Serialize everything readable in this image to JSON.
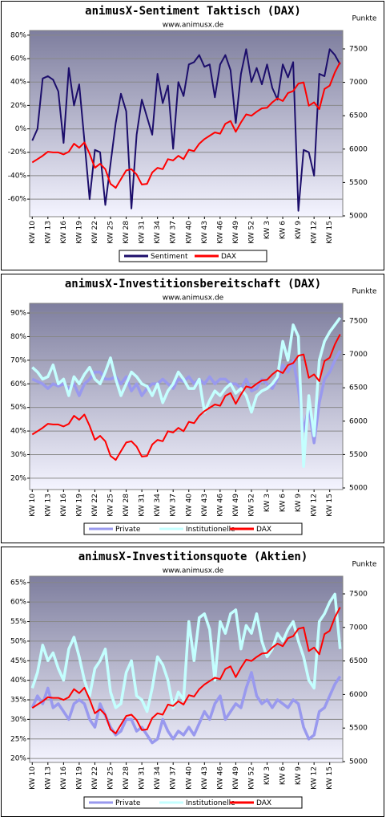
{
  "chart_data": [
    {
      "type": "line",
      "title": "animusX-Sentiment Taktisch (DAX)",
      "subtitle": "www.animusx.de",
      "y2_label": "Punkte",
      "categories": [
        "KW 10",
        null,
        null,
        "KW 13",
        null,
        null,
        "KW 16",
        null,
        null,
        "KW 19",
        null,
        null,
        "KW 22",
        null,
        null,
        "KW 25",
        null,
        null,
        "KW 28",
        null,
        null,
        "KW 31",
        null,
        null,
        "KW 34",
        null,
        null,
        "KW 37",
        null,
        null,
        "KW 40",
        null,
        null,
        "KW 43",
        null,
        null,
        "KW 46",
        null,
        null,
        "KW 49",
        null,
        null,
        "KW 52",
        null,
        null,
        "KW 3",
        null,
        null,
        "KW 6",
        null,
        null,
        "KW 9",
        null,
        null,
        "KW 12",
        null,
        null,
        "KW 15",
        null,
        null
      ],
      "series": [
        {
          "name": "Sentiment",
          "color": "#1c0e6b",
          "values": [
            -10,
            0,
            43,
            45,
            42,
            32,
            -12,
            52,
            20,
            38,
            -10,
            -60,
            -18,
            -20,
            -65,
            -30,
            5,
            30,
            15,
            -68,
            -5,
            25,
            10,
            -5,
            47,
            22,
            37,
            -17,
            40,
            28,
            55,
            57,
            63,
            53,
            55,
            27,
            55,
            63,
            50,
            5,
            47,
            68,
            40,
            52,
            38,
            55,
            35,
            25,
            55,
            44,
            57,
            -70,
            -18,
            -20,
            -40,
            47,
            45,
            68,
            63,
            55
          ]
        },
        {
          "name": "DAX",
          "color": "#ff0000",
          "axis": "y2",
          "values": [
            5800,
            5850,
            5900,
            5960,
            5950,
            5950,
            5920,
            5960,
            6080,
            6020,
            6100,
            5930,
            5720,
            5780,
            5700,
            5480,
            5420,
            5550,
            5680,
            5700,
            5620,
            5470,
            5480,
            5650,
            5720,
            5700,
            5850,
            5830,
            5900,
            5850,
            5990,
            5970,
            6080,
            6150,
            6200,
            6250,
            6230,
            6380,
            6420,
            6260,
            6400,
            6520,
            6500,
            6560,
            6610,
            6620,
            6700,
            6760,
            6720,
            6840,
            6870,
            6980,
            7000,
            6650,
            6700,
            6600,
            6900,
            6950,
            7150,
            7300
          ]
        }
      ],
      "ylim": [
        -75,
        84
      ],
      "yticks": [
        {
          "value": -60,
          "label": "-60%"
        },
        {
          "value": -40,
          "label": "-40%"
        },
        {
          "value": -20,
          "label": "-20%"
        },
        {
          "value": 0,
          "label": "0%"
        },
        {
          "value": 20,
          "label": "20%"
        },
        {
          "value": 40,
          "label": "40%"
        },
        {
          "value": 60,
          "label": "60%"
        },
        {
          "value": 80,
          "label": "80%"
        }
      ],
      "y2lim": [
        4988,
        7776
      ],
      "y2ticks": [
        5000,
        5500,
        6000,
        6500,
        7000,
        7500
      ],
      "grid": true,
      "legend": "bottom"
    },
    {
      "type": "line",
      "title": "animusX-Investitionsbereitschaft (DAX)",
      "subtitle": "www.animusx.de",
      "y2_label": "Punkte",
      "categories": [
        "KW 10",
        null,
        null,
        "KW 13",
        null,
        null,
        "KW 16",
        null,
        null,
        "KW 19",
        null,
        null,
        "KW 22",
        null,
        null,
        "KW 25",
        null,
        null,
        "KW 28",
        null,
        null,
        "KW 31",
        null,
        null,
        "KW 34",
        null,
        null,
        "KW 37",
        null,
        null,
        "KW 40",
        null,
        null,
        "KW 43",
        null,
        null,
        "KW 46",
        null,
        null,
        "KW 49",
        null,
        null,
        "KW 52",
        null,
        null,
        "KW 3",
        null,
        null,
        "KW 6",
        null,
        null,
        "KW 9",
        null,
        null,
        "KW 12",
        null,
        null,
        "KW 15",
        null,
        null
      ],
      "series": [
        {
          "name": "Private",
          "color": "#9999ee",
          "values": [
            62,
            61,
            60,
            58,
            60,
            59,
            60,
            58,
            60,
            55,
            60,
            62,
            65,
            65,
            62,
            62,
            63,
            60,
            63,
            57,
            60,
            55,
            58,
            60,
            60,
            62,
            60,
            58,
            62,
            61,
            63,
            60,
            62,
            60,
            63,
            60,
            62,
            62,
            60,
            60,
            58,
            62,
            57,
            58,
            62,
            60,
            58,
            62,
            68,
            65,
            70,
            58,
            40,
            50,
            35,
            52,
            62,
            65,
            70,
            74
          ]
        },
        {
          "name": "Institutionelle",
          "color": "#c4ffff",
          "values": [
            67,
            65,
            62,
            63,
            68,
            60,
            62,
            55,
            63,
            60,
            64,
            67,
            62,
            60,
            65,
            71,
            62,
            55,
            60,
            65,
            63,
            60,
            59,
            55,
            60,
            52,
            57,
            60,
            65,
            62,
            58,
            58,
            62,
            48,
            53,
            57,
            55,
            58,
            60,
            56,
            58,
            55,
            48,
            55,
            57,
            58,
            60,
            63,
            78,
            70,
            85,
            80,
            25,
            55,
            38,
            70,
            78,
            82,
            85,
            88
          ]
        },
        {
          "name": "DAX",
          "color": "#ff0000",
          "axis": "y2",
          "values": [
            5800,
            5850,
            5900,
            5960,
            5950,
            5950,
            5920,
            5960,
            6080,
            6020,
            6100,
            5930,
            5720,
            5780,
            5700,
            5480,
            5420,
            5550,
            5680,
            5700,
            5620,
            5470,
            5480,
            5650,
            5720,
            5700,
            5850,
            5830,
            5900,
            5850,
            5990,
            5970,
            6080,
            6150,
            6200,
            6250,
            6230,
            6380,
            6420,
            6260,
            6400,
            6520,
            6500,
            6560,
            6610,
            6620,
            6700,
            6760,
            6720,
            6840,
            6870,
            6980,
            7000,
            6650,
            6700,
            6600,
            6900,
            6950,
            7150,
            7300
          ]
        }
      ],
      "ylim": [
        15.2,
        94.1
      ],
      "yticks": [
        {
          "value": 20,
          "label": "20%"
        },
        {
          "value": 30,
          "label": "30%"
        },
        {
          "value": 40,
          "label": "40%"
        },
        {
          "value": 50,
          "label": "50%"
        },
        {
          "value": 60,
          "label": "60%"
        },
        {
          "value": 70,
          "label": "70%"
        },
        {
          "value": 80,
          "label": "80%"
        },
        {
          "value": 90,
          "label": "90%"
        }
      ],
      "y2lim": [
        4976,
        7764
      ],
      "y2ticks": [
        5000,
        5500,
        6000,
        6500,
        7000,
        7500
      ],
      "grid": true,
      "legend": "bottom"
    },
    {
      "type": "line",
      "title": "animusX-Investitionsquote (Aktien)",
      "subtitle": "www.animusx.de",
      "y2_label": "Punkte",
      "categories": [
        "KW 10",
        null,
        null,
        "KW 13",
        null,
        null,
        "KW 16",
        null,
        null,
        "KW 19",
        null,
        null,
        "KW 22",
        null,
        null,
        "KW 25",
        null,
        null,
        "KW 28",
        null,
        null,
        "KW 31",
        null,
        null,
        "KW 34",
        null,
        null,
        "KW 37",
        null,
        null,
        "KW 40",
        null,
        null,
        "KW 43",
        null,
        null,
        "KW 46",
        null,
        null,
        "KW 49",
        null,
        null,
        "KW 52",
        null,
        null,
        "KW 3",
        null,
        null,
        "KW 6",
        null,
        null,
        "KW 9",
        null,
        null,
        "KW 12",
        null,
        null,
        "KW 15",
        null,
        null
      ],
      "series": [
        {
          "name": "Private",
          "color": "#9999ee",
          "values": [
            33,
            36,
            34,
            38,
            33,
            34,
            32,
            30,
            34,
            35,
            34,
            30,
            28,
            34,
            31,
            28,
            26,
            27,
            30,
            30,
            27,
            28,
            26,
            24,
            25,
            30,
            27,
            25,
            27,
            26,
            28,
            26,
            29,
            32,
            30,
            34,
            36,
            30,
            32,
            34,
            33,
            38,
            42,
            36,
            34,
            35,
            33,
            35,
            34,
            33,
            35,
            34,
            28,
            25,
            26,
            32,
            33,
            36,
            39,
            41
          ]
        },
        {
          "name": "Institutionelle",
          "color": "#c4ffff",
          "values": [
            38,
            42,
            49,
            45,
            47,
            43,
            40,
            48,
            51,
            46,
            40,
            36,
            43,
            45,
            48,
            37,
            33,
            34,
            42,
            45,
            36,
            35,
            32,
            38,
            46,
            44,
            40,
            33,
            37,
            35,
            55,
            45,
            56,
            57,
            53,
            40,
            55,
            52,
            57,
            58,
            48,
            54,
            52,
            57,
            50,
            46,
            48,
            52,
            50,
            53,
            55,
            50,
            46,
            40,
            38,
            55,
            57,
            60,
            62,
            48
          ]
        },
        {
          "name": "DAX",
          "color": "#ff0000",
          "axis": "y2",
          "values": [
            5800,
            5850,
            5900,
            5960,
            5950,
            5950,
            5920,
            5960,
            6080,
            6020,
            6100,
            5930,
            5720,
            5780,
            5700,
            5480,
            5420,
            5550,
            5680,
            5700,
            5620,
            5470,
            5480,
            5650,
            5720,
            5700,
            5850,
            5830,
            5900,
            5850,
            5990,
            5970,
            6080,
            6150,
            6200,
            6250,
            6230,
            6380,
            6420,
            6260,
            6400,
            6520,
            6500,
            6560,
            6610,
            6620,
            6700,
            6760,
            6720,
            6840,
            6870,
            6980,
            7000,
            6650,
            6700,
            6600,
            6900,
            6950,
            7150,
            7300
          ]
        }
      ],
      "ylim": [
        19.0,
        66.6
      ],
      "yticks": [
        {
          "value": 20,
          "label": "20%"
        },
        {
          "value": 25,
          "label": "25%"
        },
        {
          "value": 30,
          "label": "30%"
        },
        {
          "value": 35,
          "label": "35%"
        },
        {
          "value": 40,
          "label": "40%"
        },
        {
          "value": 45,
          "label": "45%"
        },
        {
          "value": 50,
          "label": "50%"
        },
        {
          "value": 55,
          "label": "55%"
        },
        {
          "value": 60,
          "label": "60%"
        },
        {
          "value": 65,
          "label": "65%"
        }
      ],
      "y2lim": [
        4988,
        7763
      ],
      "y2ticks": [
        5000,
        5500,
        6000,
        6500,
        7000,
        7500
      ],
      "grid": true,
      "legend": "bottom"
    }
  ]
}
